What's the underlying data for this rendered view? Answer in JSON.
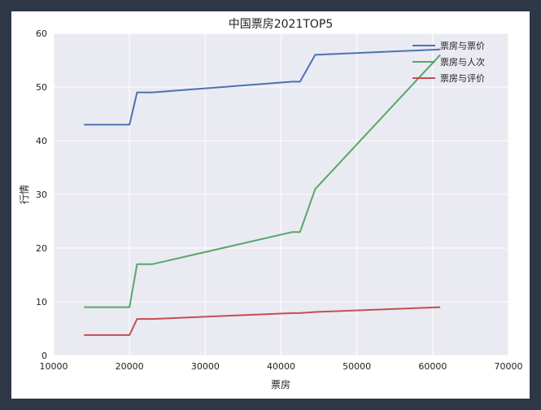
{
  "chart_data": {
    "type": "line",
    "title": "中国票房2021TOP5",
    "xlabel": "票房",
    "ylabel": "行情",
    "xlim": [
      10000,
      70000
    ],
    "ylim": [
      0,
      60
    ],
    "xticks": [
      10000,
      20000,
      30000,
      40000,
      50000,
      60000,
      70000
    ],
    "yticks": [
      0,
      10,
      20,
      30,
      40,
      50,
      60
    ],
    "grid": true,
    "legend_position": "top-right",
    "x": [
      14000,
      20000,
      21000,
      23000,
      41500,
      42500,
      44500,
      61000
    ],
    "series": [
      {
        "name": "票房与票价",
        "color": "#4c72b0",
        "values": [
          43,
          43,
          49,
          49,
          51,
          51,
          56,
          57
        ]
      },
      {
        "name": "票房与人次",
        "color": "#55a868",
        "values": [
          9,
          9,
          17,
          17,
          23,
          23,
          31,
          56
        ]
      },
      {
        "name": "票房与评价",
        "color": "#c44e52",
        "values": [
          3.8,
          3.8,
          6.8,
          6.8,
          7.9,
          7.9,
          8.1,
          9.0
        ]
      }
    ]
  }
}
